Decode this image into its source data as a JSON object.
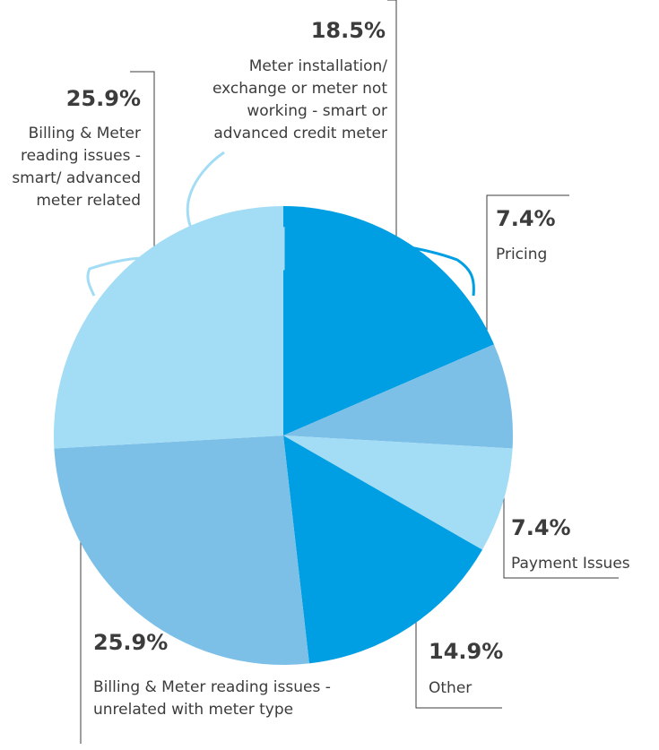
{
  "chart_data": {
    "type": "pie",
    "categories": [
      "Meter installation/ exchange or meter not working - smart or advanced credit meter",
      "Pricing",
      "Payment Issues",
      "Other",
      "Billing & Meter reading issues - unrelated with meter type",
      "Billing & Meter reading issues - smart/ advanced meter related"
    ],
    "values": [
      18.5,
      7.4,
      7.4,
      14.9,
      25.9,
      25.9
    ],
    "value_labels": [
      "18.5%",
      "7.4%",
      "7.4%",
      "14.9%",
      "25.9%",
      "25.9%"
    ],
    "colors": [
      "#009fe3",
      "#7cc0e8",
      "#a3dcf5",
      "#009fe3",
      "#7cc0e8",
      "#a3dcf5"
    ]
  }
}
